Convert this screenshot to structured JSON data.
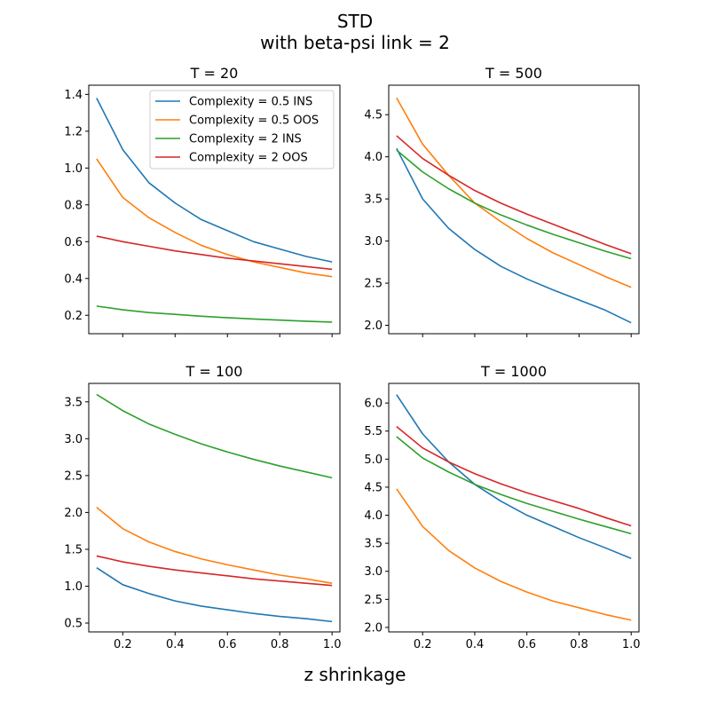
{
  "figure": {
    "title_line1": "STD",
    "title_line2": "with beta-psi link = 2",
    "xlabel": "z shrinkage"
  },
  "chart_data": [
    {
      "type": "line",
      "title": "T = 20",
      "xlim": [
        0.07,
        1.03
      ],
      "ylim": [
        0.1,
        1.45
      ],
      "xticks": [
        0.2,
        0.4,
        0.6,
        0.8,
        1.0
      ],
      "xtick_labels_shown": false,
      "yticks": [
        0.2,
        0.4,
        0.6,
        0.8,
        1.0,
        1.2,
        1.4
      ],
      "ytick_labels": [
        "0.2",
        "0.4",
        "0.6",
        "0.8",
        "1.0",
        "1.2",
        "1.4"
      ],
      "legend": "top-right",
      "series": [
        {
          "name": "Complexity = 0.5 INS",
          "color": "#1f77b4",
          "x": [
            0.1,
            0.2,
            0.3,
            0.4,
            0.5,
            0.6,
            0.7,
            0.8,
            0.9,
            1.0
          ],
          "y": [
            1.38,
            1.1,
            0.92,
            0.81,
            0.72,
            0.66,
            0.6,
            0.56,
            0.52,
            0.49
          ]
        },
        {
          "name": "Complexity = 0.5 OOS",
          "color": "#ff7f0e",
          "x": [
            0.1,
            0.2,
            0.3,
            0.4,
            0.5,
            0.6,
            0.7,
            0.8,
            0.9,
            1.0
          ],
          "y": [
            1.05,
            0.84,
            0.73,
            0.65,
            0.58,
            0.53,
            0.49,
            0.46,
            0.43,
            0.41
          ]
        },
        {
          "name": "Complexity = 2 INS",
          "color": "#2ca02c",
          "x": [
            0.1,
            0.2,
            0.3,
            0.4,
            0.5,
            0.6,
            0.7,
            0.8,
            0.9,
            1.0
          ],
          "y": [
            0.25,
            0.23,
            0.215,
            0.205,
            0.195,
            0.187,
            0.18,
            0.174,
            0.168,
            0.163
          ]
        },
        {
          "name": "Complexity = 2 OOS",
          "color": "#d62728",
          "x": [
            0.1,
            0.2,
            0.3,
            0.4,
            0.5,
            0.6,
            0.7,
            0.8,
            0.9,
            1.0
          ],
          "y": [
            0.63,
            0.6,
            0.575,
            0.55,
            0.53,
            0.51,
            0.495,
            0.48,
            0.465,
            0.45
          ]
        }
      ]
    },
    {
      "type": "line",
      "title": "T = 500",
      "xlim": [
        0.07,
        1.03
      ],
      "ylim": [
        1.9,
        4.85
      ],
      "xticks": [
        0.2,
        0.4,
        0.6,
        0.8,
        1.0
      ],
      "xtick_labels_shown": false,
      "yticks": [
        2.0,
        2.5,
        3.0,
        3.5,
        4.0,
        4.5
      ],
      "ytick_labels": [
        "2.0",
        "2.5",
        "3.0",
        "3.5",
        "4.0",
        "4.5"
      ],
      "series": [
        {
          "name": "Complexity = 0.5 INS",
          "color": "#1f77b4",
          "x": [
            0.1,
            0.2,
            0.3,
            0.4,
            0.5,
            0.6,
            0.7,
            0.8,
            0.9,
            1.0
          ],
          "y": [
            4.1,
            3.5,
            3.15,
            2.9,
            2.7,
            2.55,
            2.42,
            2.3,
            2.18,
            2.03
          ]
        },
        {
          "name": "Complexity = 0.5 OOS",
          "color": "#ff7f0e",
          "x": [
            0.1,
            0.2,
            0.3,
            0.4,
            0.5,
            0.6,
            0.7,
            0.8,
            0.9,
            1.0
          ],
          "y": [
            4.7,
            4.15,
            3.78,
            3.45,
            3.23,
            3.03,
            2.86,
            2.72,
            2.58,
            2.45
          ]
        },
        {
          "name": "Complexity = 2 INS",
          "color": "#2ca02c",
          "x": [
            0.1,
            0.2,
            0.3,
            0.4,
            0.5,
            0.6,
            0.7,
            0.8,
            0.9,
            1.0
          ],
          "y": [
            4.08,
            3.82,
            3.62,
            3.45,
            3.31,
            3.19,
            3.08,
            2.98,
            2.88,
            2.79
          ]
        },
        {
          "name": "Complexity = 2 OOS",
          "color": "#d62728",
          "x": [
            0.1,
            0.2,
            0.3,
            0.4,
            0.5,
            0.6,
            0.7,
            0.8,
            0.9,
            1.0
          ],
          "y": [
            4.25,
            3.98,
            3.78,
            3.6,
            3.45,
            3.32,
            3.2,
            3.08,
            2.96,
            2.85
          ]
        }
      ]
    },
    {
      "type": "line",
      "title": "T = 100",
      "xlim": [
        0.07,
        1.03
      ],
      "ylim": [
        0.38,
        3.75
      ],
      "xticks": [
        0.2,
        0.4,
        0.6,
        0.8,
        1.0
      ],
      "xtick_labels_shown": true,
      "xtick_labels": [
        "0.2",
        "0.4",
        "0.6",
        "0.8",
        "1.0"
      ],
      "yticks": [
        0.5,
        1.0,
        1.5,
        2.0,
        2.5,
        3.0,
        3.5
      ],
      "ytick_labels": [
        "0.5",
        "1.0",
        "1.5",
        "2.0",
        "2.5",
        "3.0",
        "3.5"
      ],
      "series": [
        {
          "name": "Complexity = 0.5 INS",
          "color": "#1f77b4",
          "x": [
            0.1,
            0.2,
            0.3,
            0.4,
            0.5,
            0.6,
            0.7,
            0.8,
            0.9,
            1.0
          ],
          "y": [
            1.25,
            1.02,
            0.9,
            0.8,
            0.73,
            0.68,
            0.63,
            0.59,
            0.56,
            0.52
          ]
        },
        {
          "name": "Complexity = 0.5 OOS",
          "color": "#ff7f0e",
          "x": [
            0.1,
            0.2,
            0.3,
            0.4,
            0.5,
            0.6,
            0.7,
            0.8,
            0.9,
            1.0
          ],
          "y": [
            2.07,
            1.78,
            1.6,
            1.47,
            1.37,
            1.29,
            1.22,
            1.15,
            1.1,
            1.04
          ]
        },
        {
          "name": "Complexity = 2 INS",
          "color": "#2ca02c",
          "x": [
            0.1,
            0.2,
            0.3,
            0.4,
            0.5,
            0.6,
            0.7,
            0.8,
            0.9,
            1.0
          ],
          "y": [
            3.6,
            3.38,
            3.2,
            3.06,
            2.93,
            2.82,
            2.72,
            2.63,
            2.55,
            2.47
          ]
        },
        {
          "name": "Complexity = 2 OOS",
          "color": "#d62728",
          "x": [
            0.1,
            0.2,
            0.3,
            0.4,
            0.5,
            0.6,
            0.7,
            0.8,
            0.9,
            1.0
          ],
          "y": [
            1.41,
            1.33,
            1.27,
            1.22,
            1.18,
            1.14,
            1.1,
            1.07,
            1.04,
            1.01
          ]
        }
      ]
    },
    {
      "type": "line",
      "title": "T = 1000",
      "xlim": [
        0.07,
        1.03
      ],
      "ylim": [
        1.92,
        6.35
      ],
      "xticks": [
        0.2,
        0.4,
        0.6,
        0.8,
        1.0
      ],
      "xtick_labels_shown": true,
      "xtick_labels": [
        "0.2",
        "0.4",
        "0.6",
        "0.8",
        "1.0"
      ],
      "yticks": [
        2.0,
        2.5,
        3.0,
        3.5,
        4.0,
        4.5,
        5.0,
        5.5,
        6.0
      ],
      "ytick_labels": [
        "2.0",
        "2.5",
        "3.0",
        "3.5",
        "4.0",
        "4.5",
        "5.0",
        "5.5",
        "6.0"
      ],
      "series": [
        {
          "name": "Complexity = 0.5 INS",
          "color": "#1f77b4",
          "x": [
            0.1,
            0.2,
            0.3,
            0.4,
            0.5,
            0.6,
            0.7,
            0.8,
            0.9,
            1.0
          ],
          "y": [
            6.15,
            5.45,
            4.95,
            4.55,
            4.25,
            4.0,
            3.8,
            3.6,
            3.42,
            3.23
          ]
        },
        {
          "name": "Complexity = 0.5 OOS",
          "color": "#ff7f0e",
          "x": [
            0.1,
            0.2,
            0.3,
            0.4,
            0.5,
            0.6,
            0.7,
            0.8,
            0.9,
            1.0
          ],
          "y": [
            4.47,
            3.8,
            3.37,
            3.06,
            2.82,
            2.63,
            2.47,
            2.35,
            2.23,
            2.13
          ]
        },
        {
          "name": "Complexity = 2 INS",
          "color": "#2ca02c",
          "x": [
            0.1,
            0.2,
            0.3,
            0.4,
            0.5,
            0.6,
            0.7,
            0.8,
            0.9,
            1.0
          ],
          "y": [
            5.4,
            5.02,
            4.77,
            4.55,
            4.37,
            4.21,
            4.07,
            3.93,
            3.8,
            3.67
          ]
        },
        {
          "name": "Complexity = 2 OOS",
          "color": "#d62728",
          "x": [
            0.1,
            0.2,
            0.3,
            0.4,
            0.5,
            0.6,
            0.7,
            0.8,
            0.9,
            1.0
          ],
          "y": [
            5.58,
            5.2,
            4.95,
            4.74,
            4.56,
            4.4,
            4.26,
            4.12,
            3.96,
            3.81
          ]
        }
      ]
    }
  ]
}
